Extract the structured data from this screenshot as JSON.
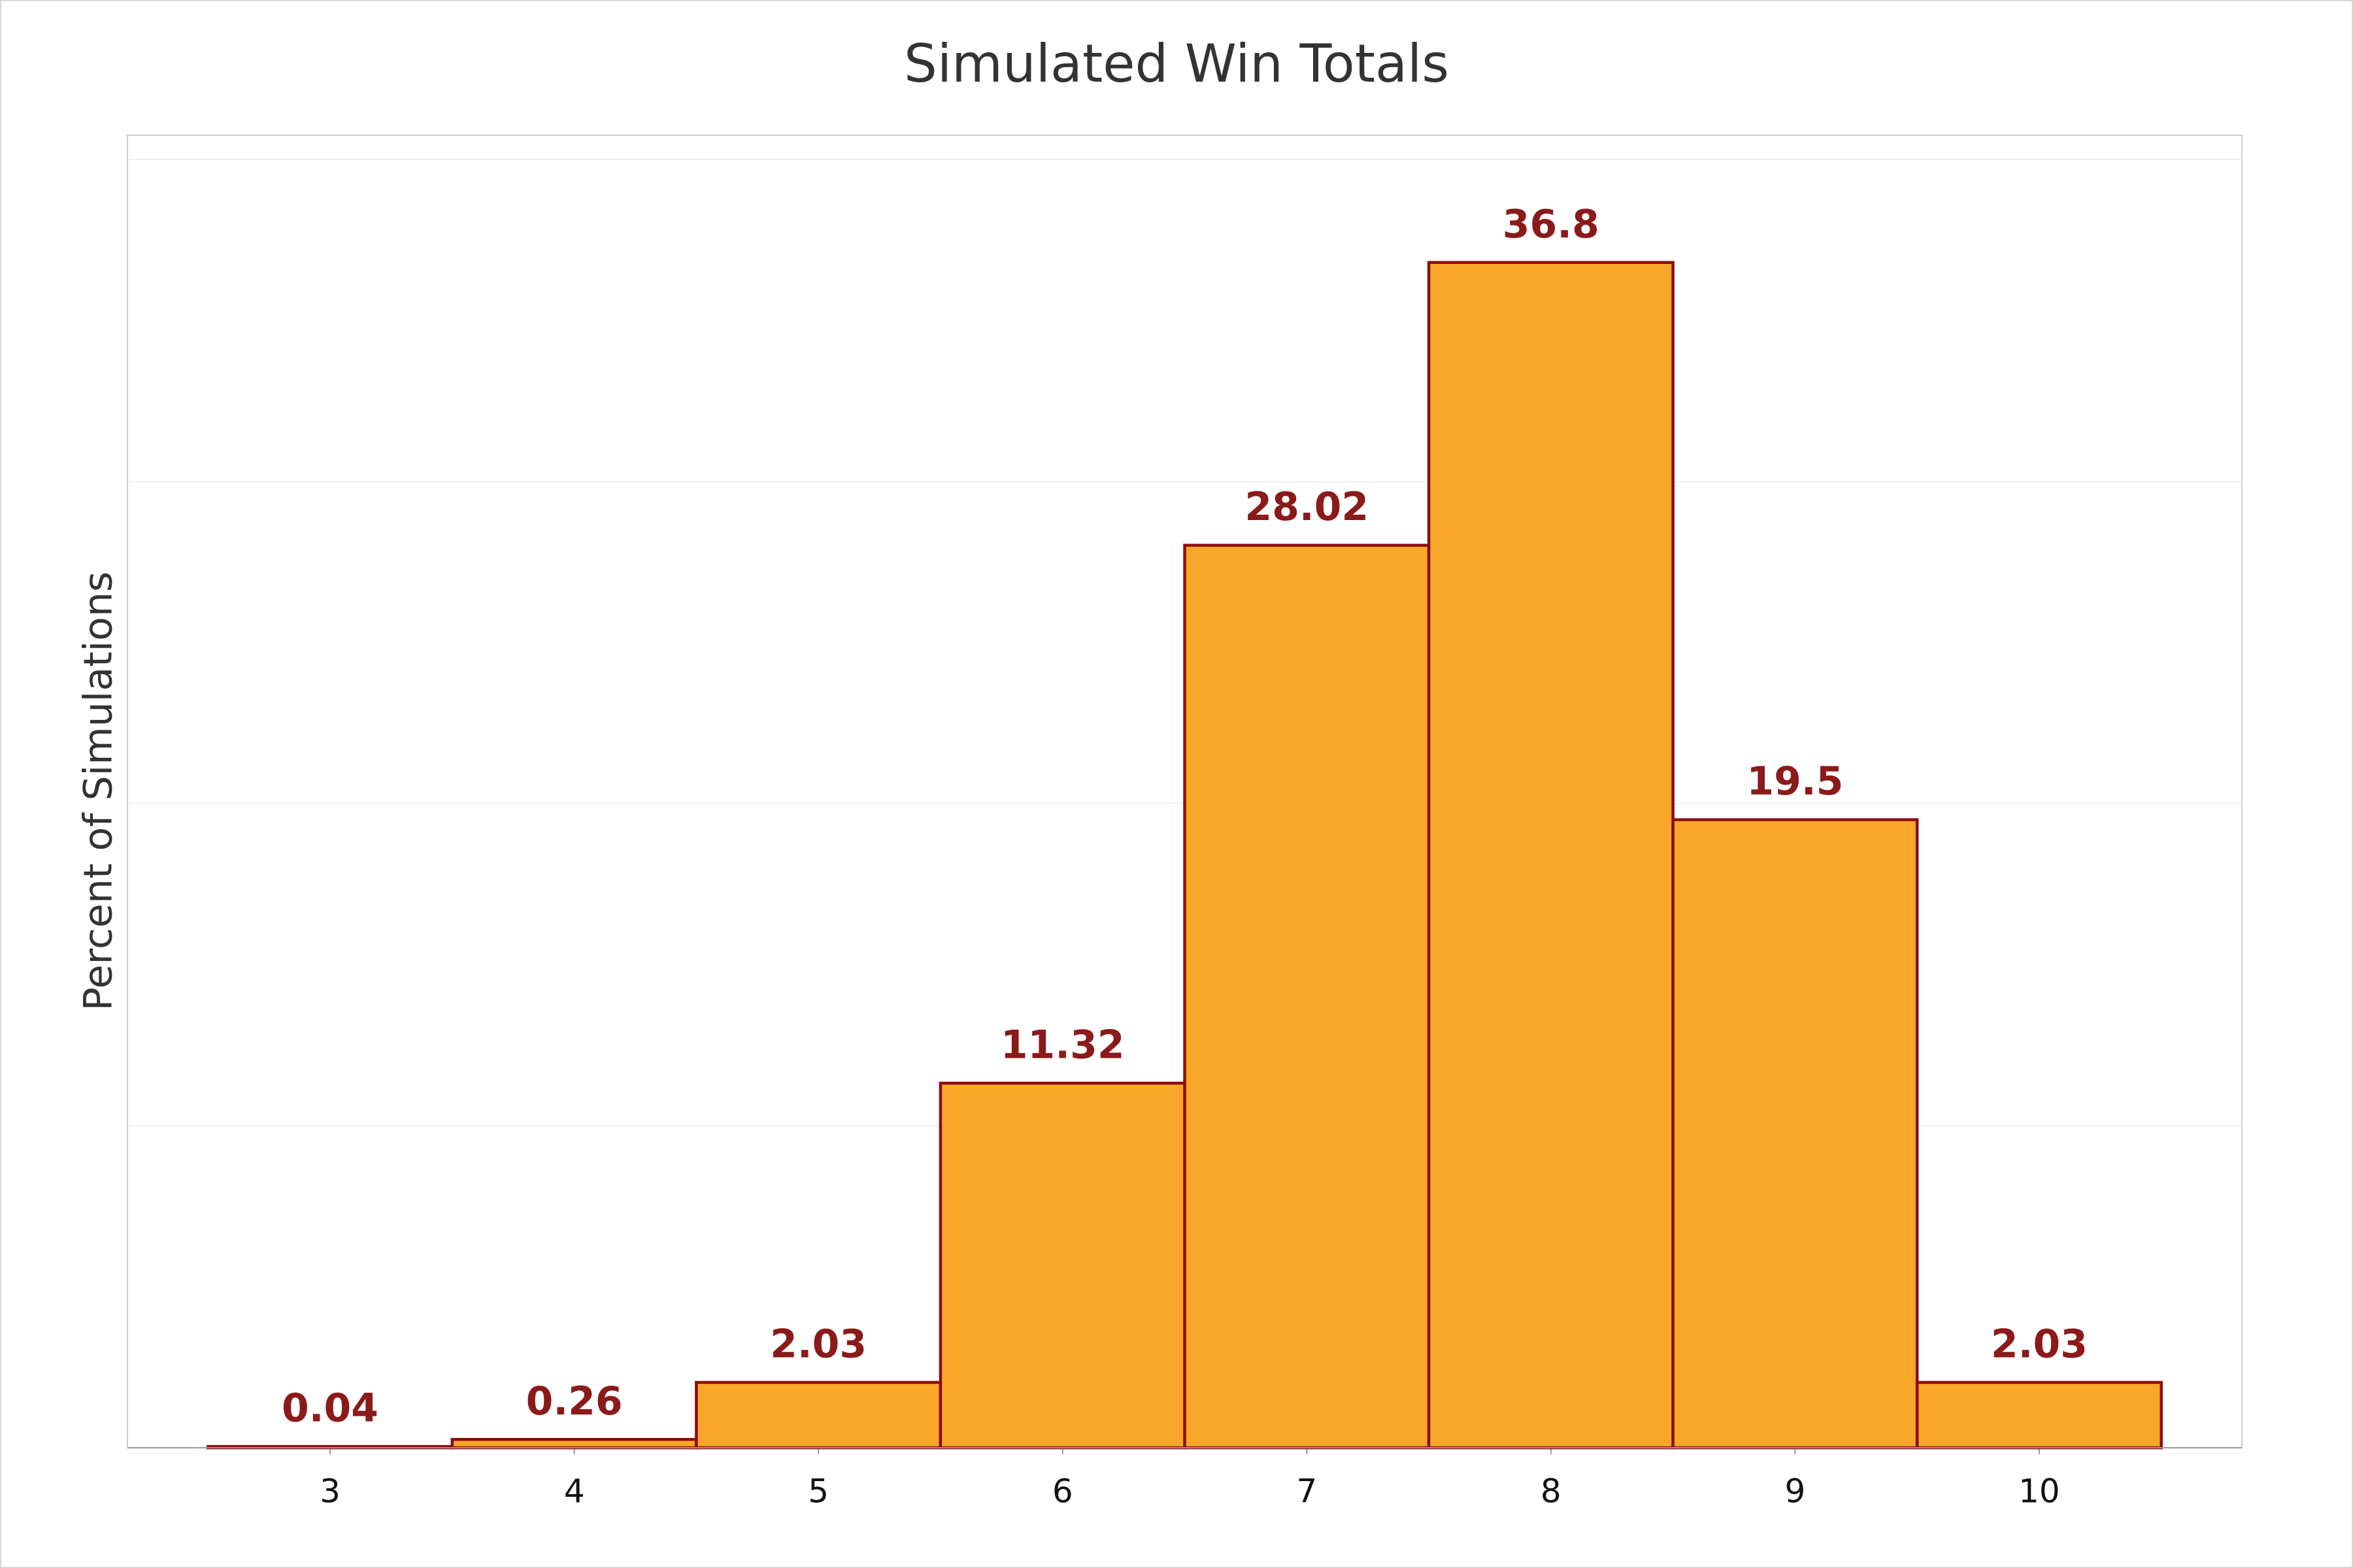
{
  "chart_data": {
    "type": "bar",
    "title": "Simulated Win Totals",
    "y_label": "Percent of Simulations",
    "x": [
      3,
      4,
      5,
      6,
      7,
      8,
      9,
      10
    ],
    "values": [
      0.04,
      0.26,
      2.03,
      11.32,
      28.02,
      36.8,
      19.5,
      2.03
    ],
    "color": "#f9a72a",
    "edge_color": "#8b0d0d",
    "label_color": "#8b1a1a",
    "xlim": [
      2.17,
      10.83
    ],
    "xticks": [
      3,
      4,
      5,
      6,
      7,
      8,
      9,
      10
    ],
    "ylim": [
      0,
      40.75
    ],
    "yticks": [
      10,
      20,
      30,
      40
    ],
    "grid": true
  }
}
